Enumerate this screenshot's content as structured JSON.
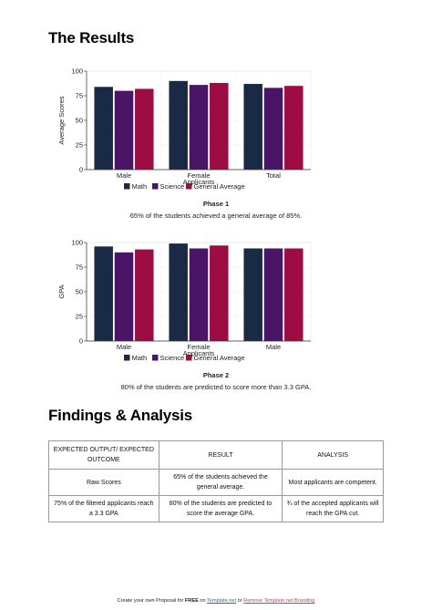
{
  "sections": {
    "results_title": "The Results",
    "findings_title": "Findings & Analysis"
  },
  "colors": {
    "math": "#1b2a44",
    "science": "#4a1566",
    "general": "#9d0d44"
  },
  "chart_data": [
    {
      "type": "bar",
      "categories": [
        "Male",
        "Female Applicants",
        "Total"
      ],
      "series": [
        {
          "name": "Math",
          "values": [
            84,
            90,
            87
          ]
        },
        {
          "name": "Science",
          "values": [
            80,
            86,
            83
          ]
        },
        {
          "name": "General Average",
          "values": [
            82,
            88,
            85
          ]
        }
      ],
      "ylabel": "Average Scores",
      "ylim": [
        0,
        100
      ],
      "yticks": [
        0,
        25,
        50,
        75,
        100
      ],
      "grid": true,
      "legend": "bottom"
    },
    {
      "type": "bar",
      "categories": [
        "Male",
        "Female Applicants",
        "Male"
      ],
      "series": [
        {
          "name": "Math",
          "values": [
            96,
            99,
            94
          ]
        },
        {
          "name": "Science",
          "values": [
            90,
            94,
            94
          ]
        },
        {
          "name": "General Average",
          "values": [
            93,
            97,
            94
          ]
        }
      ],
      "ylabel": "GPA",
      "ylim": [
        0,
        100
      ],
      "yticks": [
        0,
        25,
        50,
        75,
        100
      ],
      "grid": true,
      "legend": "bottom"
    }
  ],
  "captions": {
    "phase1_title": "Phase 1",
    "phase1_text": "65% of the students achieved a general average of 85%.",
    "phase2_title": "Phase 2",
    "phase2_text": "80% of the students are predicted to score more than 3.3 GPA."
  },
  "table": {
    "headers": [
      "EXPECTED OUTPUT/ EXPECTED OUTCOME",
      "RESULT",
      "ANALYSIS"
    ],
    "rows": [
      [
        "Raw Scores",
        "65% of the students achieved the general average.",
        "Most applicants are competent."
      ],
      [
        "75% of the filtered applicants reach a 3.3 GPA",
        "80% of the students are predicted to score the average GPA.",
        "¾ of the accepted applicants will reach the GPA cut."
      ]
    ]
  },
  "footer": {
    "prefix": "Create your own Proposal for ",
    "free": "FREE",
    "on": " on ",
    "site_link": "Template.net",
    "or": " or ",
    "remove_link": "Remove Template.net Branding"
  }
}
